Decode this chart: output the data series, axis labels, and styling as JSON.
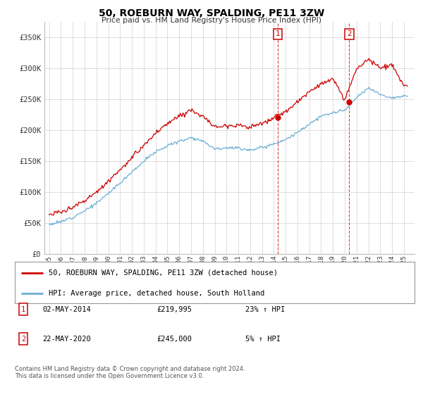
{
  "title": "50, ROEBURN WAY, SPALDING, PE11 3ZW",
  "subtitle": "Price paid vs. HM Land Registry's House Price Index (HPI)",
  "ylabel_ticks": [
    "£0",
    "£50K",
    "£100K",
    "£150K",
    "£200K",
    "£250K",
    "£300K",
    "£350K"
  ],
  "ytick_values": [
    0,
    50000,
    100000,
    150000,
    200000,
    250000,
    300000,
    350000
  ],
  "ylim": [
    0,
    370000
  ],
  "xticks": [
    1995,
    1996,
    1997,
    1998,
    1999,
    2000,
    2001,
    2002,
    2003,
    2004,
    2005,
    2006,
    2007,
    2008,
    2009,
    2010,
    2011,
    2012,
    2013,
    2014,
    2015,
    2016,
    2017,
    2018,
    2019,
    2020,
    2021,
    2022,
    2023,
    2024,
    2025
  ],
  "hpi_color": "#6baed6",
  "price_color": "#cc0000",
  "marker1_year": 2014.35,
  "marker1_price": 219995,
  "marker2_year": 2020.38,
  "marker2_price": 245000,
  "legend_label1": "50, ROEBURN WAY, SPALDING, PE11 3ZW (detached house)",
  "legend_label2": "HPI: Average price, detached house, South Holland",
  "table_row1": [
    "1",
    "02-MAY-2014",
    "£219,995",
    "23% ↑ HPI"
  ],
  "table_row2": [
    "2",
    "22-MAY-2020",
    "£245,000",
    "5% ↑ HPI"
  ],
  "footer": "Contains HM Land Registry data © Crown copyright and database right 2024.\nThis data is licensed under the Open Government Licence v3.0.",
  "background_color": "#ffffff",
  "grid_color": "#d0d0d0"
}
